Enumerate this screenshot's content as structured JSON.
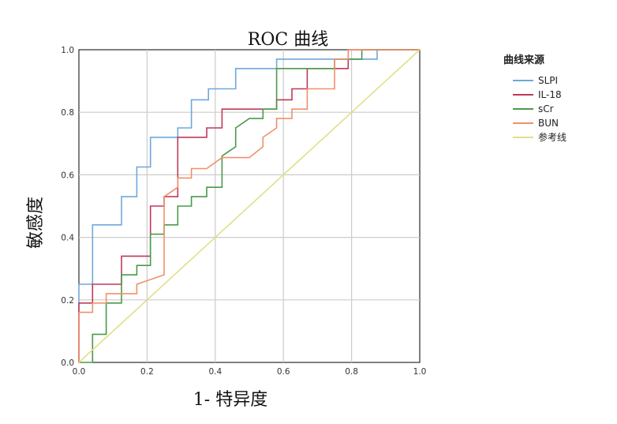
{
  "chart_data": {
    "type": "line",
    "title": "ROC 曲线",
    "xlabel": "1- 特异度",
    "ylabel": "敏感度",
    "xlim": [
      0,
      1
    ],
    "ylim": [
      0,
      1
    ],
    "grid": true,
    "x_ticks": [
      "0.0",
      "0.2",
      "0.4",
      "0.6",
      "0.8",
      "1.0"
    ],
    "y_ticks": [
      "0.0",
      "0.2",
      "0.4",
      "0.6",
      "0.8",
      "1.0"
    ],
    "legend_title": "曲线来源",
    "legend_position": "right",
    "series": [
      {
        "name": "SLPI",
        "color": "#6fa8dc",
        "points": [
          [
            0,
            0
          ],
          [
            0,
            0.25
          ],
          [
            0.04,
            0.25
          ],
          [
            0.04,
            0.44
          ],
          [
            0.125,
            0.44
          ],
          [
            0.125,
            0.53
          ],
          [
            0.17,
            0.53
          ],
          [
            0.17,
            0.625
          ],
          [
            0.21,
            0.625
          ],
          [
            0.21,
            0.72
          ],
          [
            0.29,
            0.72
          ],
          [
            0.29,
            0.75
          ],
          [
            0.33,
            0.75
          ],
          [
            0.33,
            0.84
          ],
          [
            0.38,
            0.84
          ],
          [
            0.38,
            0.875
          ],
          [
            0.46,
            0.875
          ],
          [
            0.46,
            0.94
          ],
          [
            0.58,
            0.94
          ],
          [
            0.58,
            0.97
          ],
          [
            0.875,
            0.97
          ],
          [
            0.875,
            1.0
          ],
          [
            1.0,
            1.0
          ]
        ]
      },
      {
        "name": "IL-18",
        "color": "#c0395a",
        "points": [
          [
            0,
            0
          ],
          [
            0,
            0.19
          ],
          [
            0.04,
            0.19
          ],
          [
            0.04,
            0.25
          ],
          [
            0.125,
            0.25
          ],
          [
            0.125,
            0.34
          ],
          [
            0.21,
            0.34
          ],
          [
            0.21,
            0.5
          ],
          [
            0.25,
            0.5
          ],
          [
            0.25,
            0.53
          ],
          [
            0.29,
            0.53
          ],
          [
            0.29,
            0.72
          ],
          [
            0.375,
            0.72
          ],
          [
            0.375,
            0.75
          ],
          [
            0.42,
            0.75
          ],
          [
            0.42,
            0.81
          ],
          [
            0.58,
            0.81
          ],
          [
            0.58,
            0.84
          ],
          [
            0.625,
            0.84
          ],
          [
            0.625,
            0.875
          ],
          [
            0.67,
            0.875
          ],
          [
            0.67,
            0.94
          ],
          [
            0.79,
            0.94
          ],
          [
            0.79,
            1.0
          ],
          [
            1.0,
            1.0
          ]
        ]
      },
      {
        "name": "sCr",
        "color": "#4a9a4a",
        "points": [
          [
            0,
            0
          ],
          [
            0.04,
            0
          ],
          [
            0.04,
            0.09
          ],
          [
            0.08,
            0.09
          ],
          [
            0.08,
            0.19
          ],
          [
            0.125,
            0.19
          ],
          [
            0.125,
            0.28
          ],
          [
            0.17,
            0.28
          ],
          [
            0.17,
            0.31
          ],
          [
            0.21,
            0.31
          ],
          [
            0.21,
            0.41
          ],
          [
            0.25,
            0.41
          ],
          [
            0.25,
            0.44
          ],
          [
            0.29,
            0.44
          ],
          [
            0.29,
            0.5
          ],
          [
            0.33,
            0.5
          ],
          [
            0.33,
            0.53
          ],
          [
            0.375,
            0.53
          ],
          [
            0.375,
            0.56
          ],
          [
            0.42,
            0.56
          ],
          [
            0.42,
            0.66
          ],
          [
            0.46,
            0.69
          ],
          [
            0.46,
            0.75
          ],
          [
            0.5,
            0.78
          ],
          [
            0.54,
            0.78
          ],
          [
            0.54,
            0.81
          ],
          [
            0.58,
            0.81
          ],
          [
            0.58,
            0.94
          ],
          [
            0.75,
            0.94
          ],
          [
            0.75,
            0.97
          ],
          [
            0.83,
            0.97
          ],
          [
            0.83,
            1.0
          ],
          [
            1.0,
            1.0
          ]
        ]
      },
      {
        "name": "BUN",
        "color": "#f0906a",
        "points": [
          [
            0,
            0
          ],
          [
            0,
            0.16
          ],
          [
            0.04,
            0.16
          ],
          [
            0.04,
            0.19
          ],
          [
            0.08,
            0.19
          ],
          [
            0.08,
            0.22
          ],
          [
            0.17,
            0.22
          ],
          [
            0.17,
            0.25
          ],
          [
            0.25,
            0.28
          ],
          [
            0.25,
            0.53
          ],
          [
            0.29,
            0.56
          ],
          [
            0.29,
            0.59
          ],
          [
            0.33,
            0.59
          ],
          [
            0.33,
            0.62
          ],
          [
            0.375,
            0.62
          ],
          [
            0.42,
            0.655
          ],
          [
            0.5,
            0.655
          ],
          [
            0.54,
            0.69
          ],
          [
            0.54,
            0.72
          ],
          [
            0.58,
            0.75
          ],
          [
            0.58,
            0.78
          ],
          [
            0.625,
            0.78
          ],
          [
            0.625,
            0.81
          ],
          [
            0.67,
            0.81
          ],
          [
            0.67,
            0.875
          ],
          [
            0.75,
            0.875
          ],
          [
            0.75,
            0.97
          ],
          [
            0.79,
            0.97
          ],
          [
            0.79,
            1.0
          ],
          [
            1.0,
            1.0
          ]
        ]
      },
      {
        "name": "参考线",
        "color": "#e0e08a",
        "points": [
          [
            0,
            0
          ],
          [
            1,
            1
          ]
        ]
      }
    ]
  }
}
